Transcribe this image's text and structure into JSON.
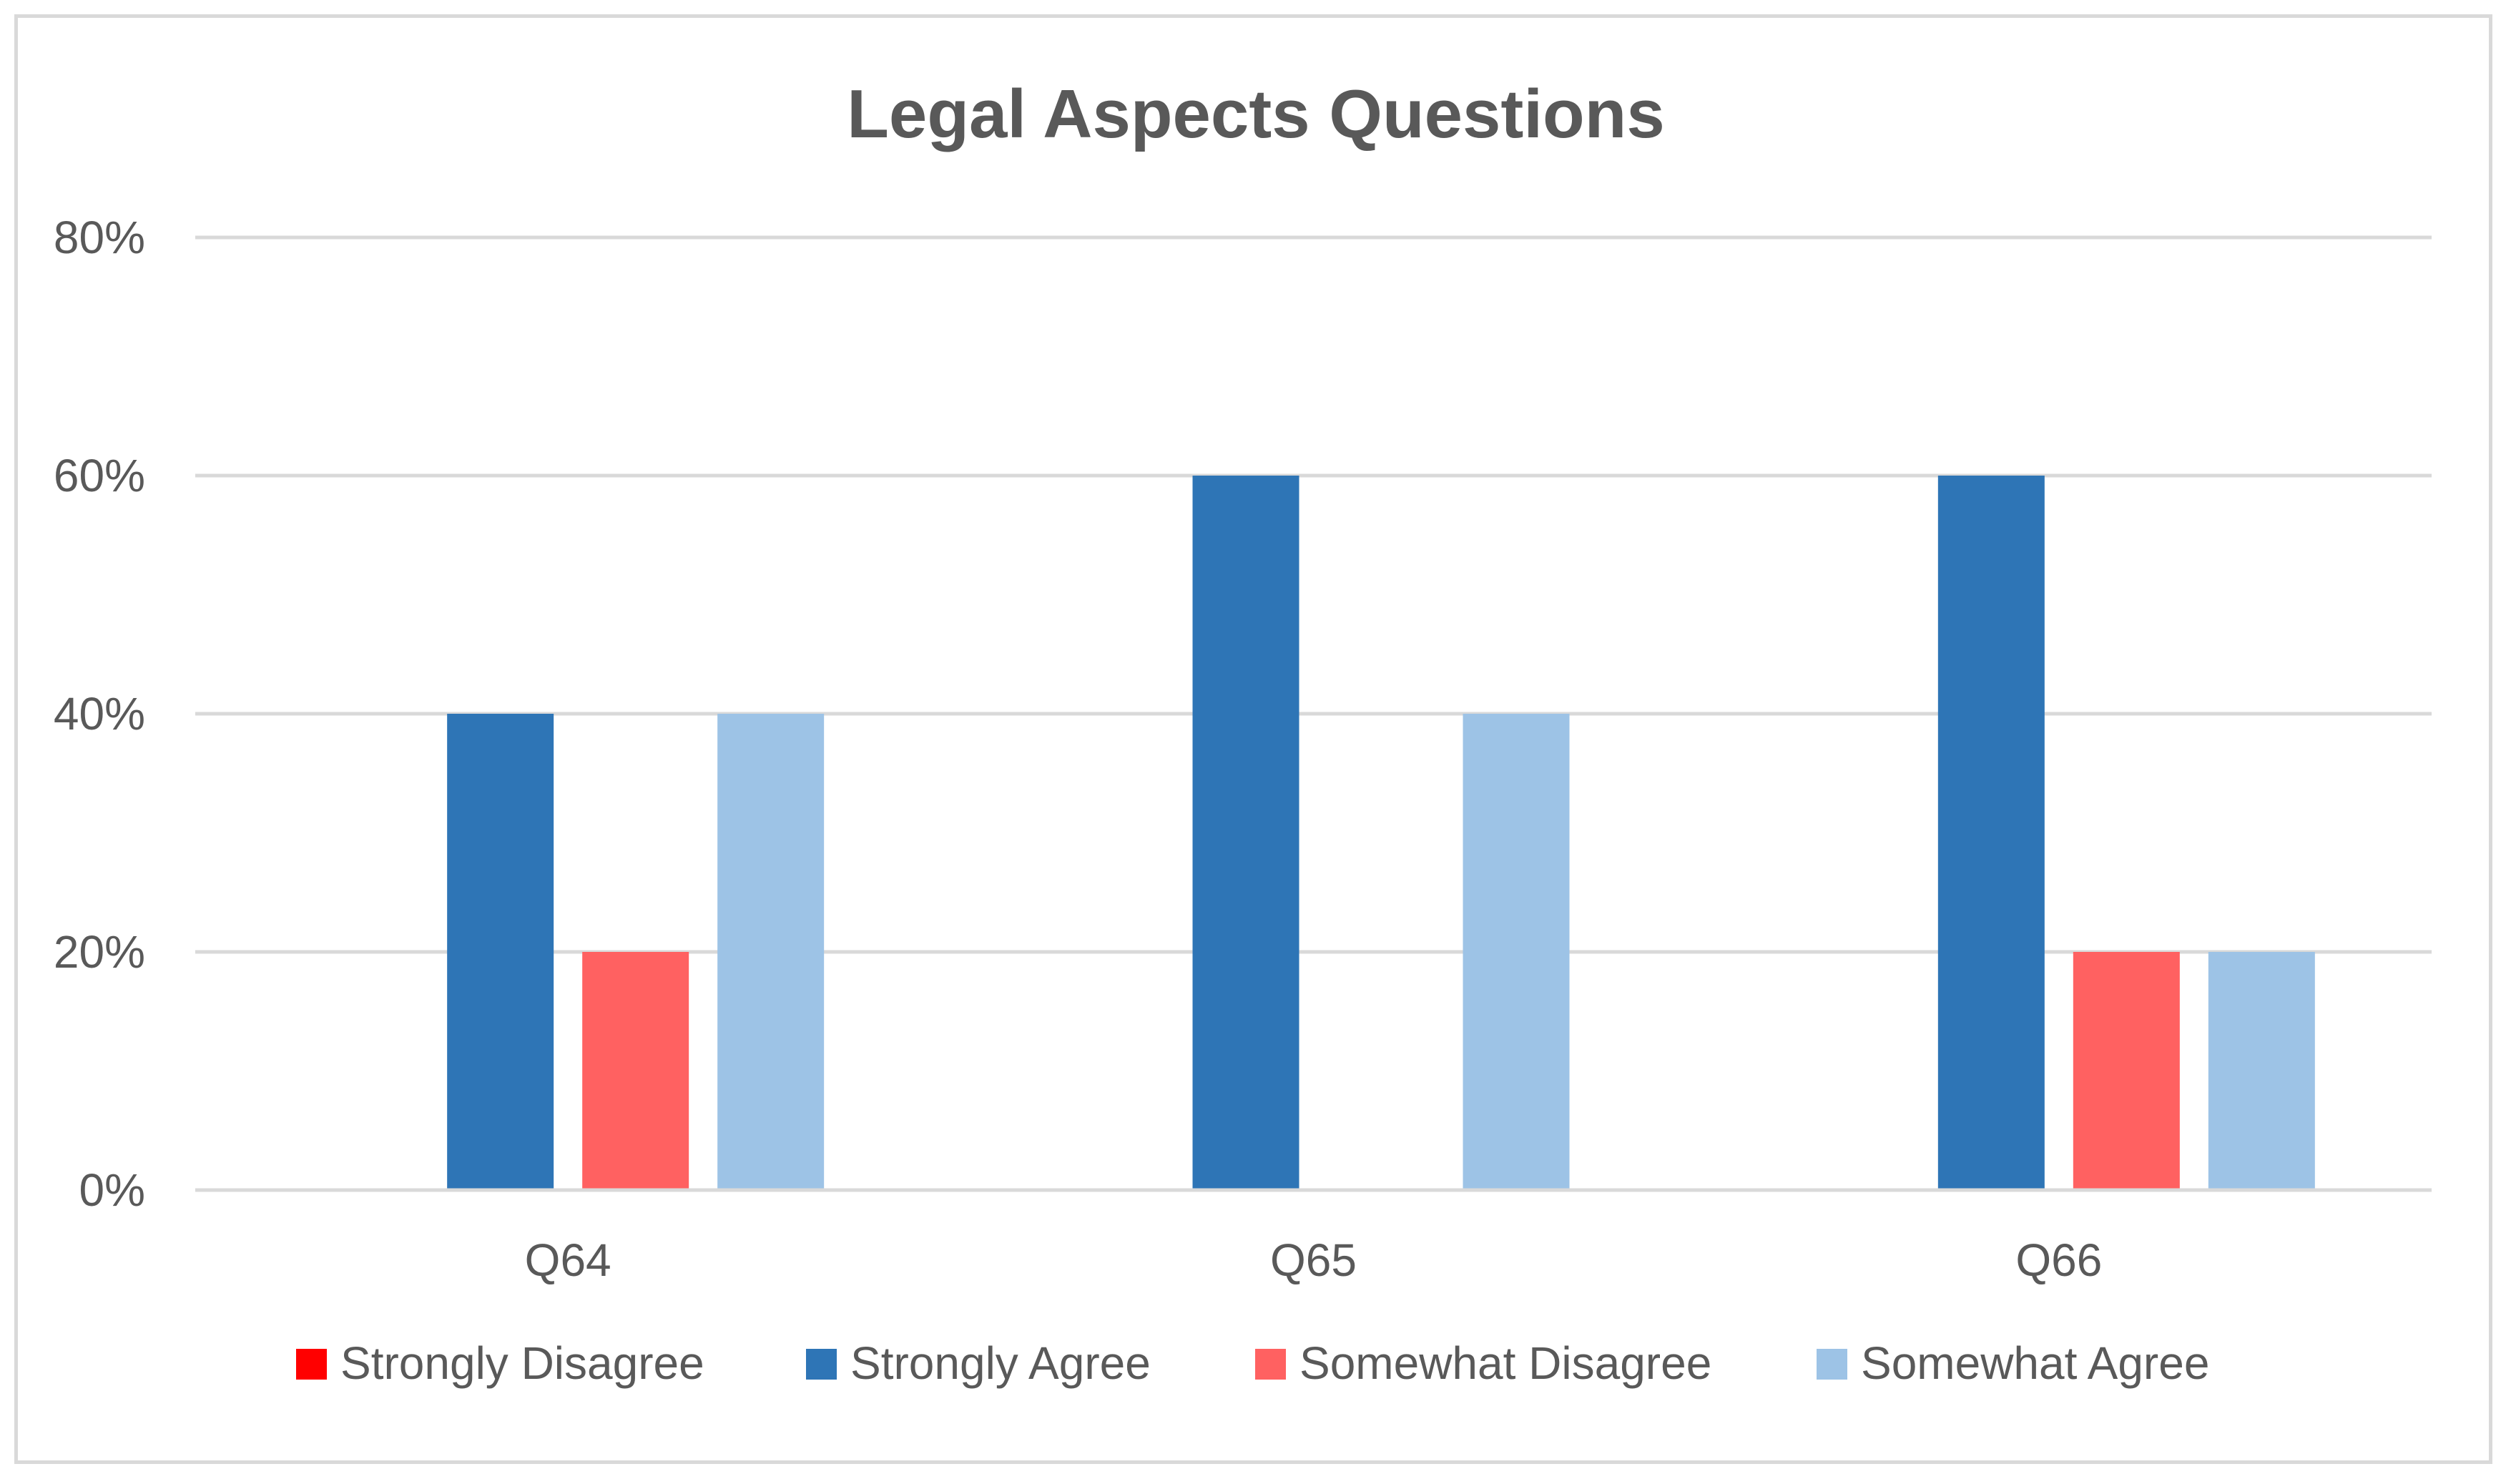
{
  "chart_data": {
    "type": "bar",
    "title": "Legal Aspects Questions",
    "categories": [
      "Q64",
      "Q65",
      "Q66"
    ],
    "series": [
      {
        "name": "Strongly Disagree",
        "color": "#ff0000",
        "values": [
          0,
          0,
          0
        ]
      },
      {
        "name": "Strongly Agree",
        "color": "#2e75b6",
        "values": [
          40,
          60,
          60
        ]
      },
      {
        "name": "Somewhat Disagree",
        "color": "#ff6161",
        "values": [
          20,
          0,
          20
        ]
      },
      {
        "name": "Somewhat Agree",
        "color": "#9dc3e6",
        "values": [
          40,
          40,
          20
        ]
      }
    ],
    "ylim": [
      0,
      80
    ],
    "yticks": [
      0,
      20,
      40,
      60,
      80
    ],
    "ytick_labels": [
      "0%",
      "20%",
      "40%",
      "60%",
      "80%"
    ],
    "xlabel": "",
    "ylabel": "",
    "grid": true,
    "legend_position": "bottom",
    "gridline_color": "#d9d9d9",
    "text_color": "#595959"
  }
}
